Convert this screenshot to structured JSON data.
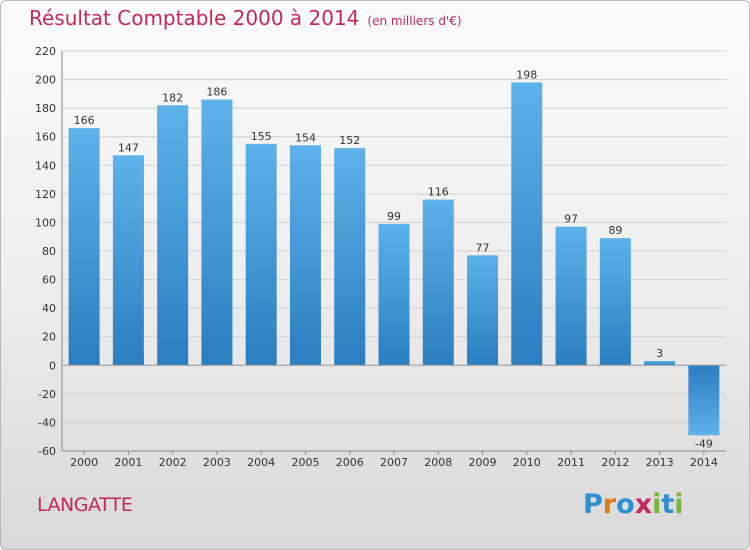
{
  "title": {
    "main": "Résultat Comptable 2000 à 2014",
    "unit": "(en milliers d'€)"
  },
  "commune": "LANGATTE",
  "logo": {
    "text": "Proxiti",
    "letters": [
      {
        "ch": "P",
        "color": "#2f8fd0"
      },
      {
        "ch": "r",
        "color": "#e07b17"
      },
      {
        "ch": "o",
        "color": "#2f8fd0"
      },
      {
        "ch": "x",
        "color": "#c2285d"
      },
      {
        "ch": "i",
        "color": "#7ab33a"
      },
      {
        "ch": "t",
        "color": "#2f8fd0"
      },
      {
        "ch": "i",
        "color": "#7ab33a"
      }
    ]
  },
  "colors": {
    "title": "#c2285d",
    "bar_light": "#5db2ea",
    "bar_dark": "#2a7ec0"
  },
  "chart_data": {
    "type": "bar",
    "title": "Résultat Comptable 2000 à 2014",
    "subtitle": "(en milliers d'€)",
    "xlabel": "",
    "ylabel": "",
    "categories": [
      "2000",
      "2001",
      "2002",
      "2003",
      "2004",
      "2005",
      "2006",
      "2007",
      "2008",
      "2009",
      "2010",
      "2011",
      "2012",
      "2013",
      "2014"
    ],
    "values": [
      166,
      147,
      182,
      186,
      155,
      154,
      152,
      99,
      116,
      77,
      198,
      97,
      89,
      3,
      -49
    ],
    "ylim": [
      -60,
      220
    ],
    "yticks": [
      -60,
      -40,
      -20,
      0,
      20,
      40,
      60,
      80,
      100,
      120,
      140,
      160,
      180,
      200,
      220
    ],
    "grid": "horizontal",
    "legend": "none"
  }
}
